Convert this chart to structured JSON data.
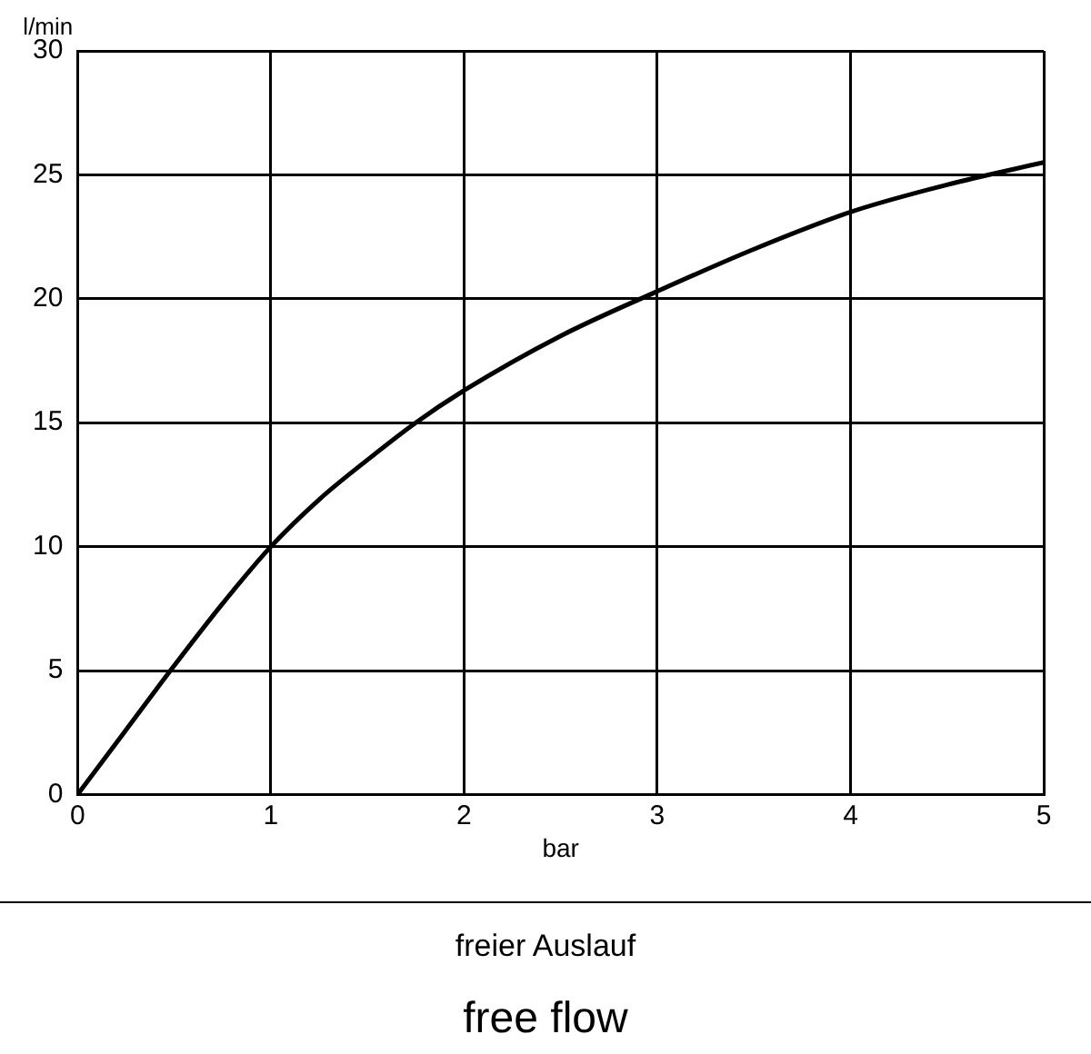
{
  "chart_data": {
    "type": "line",
    "xlabel": "bar",
    "ylabel": "l/min",
    "x": [
      0,
      0.25,
      0.5,
      0.75,
      1,
      1.25,
      1.5,
      1.75,
      2,
      2.5,
      3,
      3.5,
      4,
      4.5,
      5
    ],
    "series": [
      {
        "color": "#000000",
        "values": [
          0,
          2.6,
          5.2,
          7.7,
          10,
          11.9,
          13.5,
          15,
          16.3,
          18.5,
          20.3,
          22,
          23.5,
          24.6,
          25.5
        ]
      }
    ],
    "xlim": [
      0,
      5
    ],
    "xticks": [
      0,
      1,
      2,
      3,
      4,
      5
    ],
    "ylim": [
      0,
      30
    ],
    "yticks": [
      0,
      5,
      10,
      15,
      20,
      25,
      30
    ],
    "grid": true,
    "legend": false,
    "marker": "none",
    "line_style": "solid",
    "annotations": [
      "freier Auslauf",
      "free flow"
    ]
  }
}
